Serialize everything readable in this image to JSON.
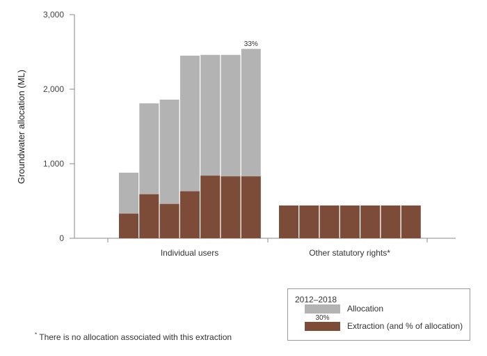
{
  "chart_data": {
    "type": "bar",
    "stacked": true,
    "ylabel": "Groundwater allocation (ML)",
    "ylim": [
      0,
      3000
    ],
    "yticks": [
      0,
      1000,
      2000,
      3000
    ],
    "ytick_labels": [
      "0",
      "1,000",
      "2,000",
      "3,000"
    ],
    "groups": [
      {
        "name": "Individual users",
        "years": [
          "2012",
          "2013",
          "2014",
          "2015",
          "2016",
          "2017",
          "2018"
        ],
        "allocation": [
          880,
          1810,
          1860,
          2450,
          2460,
          2460,
          2540
        ],
        "extraction": [
          330,
          590,
          460,
          630,
          840,
          830,
          830
        ]
      },
      {
        "name": "Other statutory rights*",
        "years": [
          "2012",
          "2013",
          "2014",
          "2015",
          "2016",
          "2017",
          "2018"
        ],
        "allocation": [
          0,
          0,
          0,
          0,
          0,
          0,
          0
        ],
        "extraction": [
          440,
          440,
          440,
          440,
          440,
          440,
          440
        ]
      }
    ],
    "annotations": [
      {
        "group": 0,
        "index": 6,
        "text": "33%"
      }
    ],
    "legend": {
      "title": "2012–2018",
      "placement": "bottom-right",
      "items": [
        {
          "label": "Allocation",
          "color": "#b3b3b3"
        },
        {
          "label": "Extraction (and % of allocation)",
          "color": "#7d4c38",
          "example": "30%"
        }
      ]
    },
    "colors": {
      "allocation": "#b3b3b3",
      "extraction": "#7d4c38"
    }
  },
  "footnote": {
    "marker": "*",
    "text": "There is no allocation associated with this extraction"
  }
}
